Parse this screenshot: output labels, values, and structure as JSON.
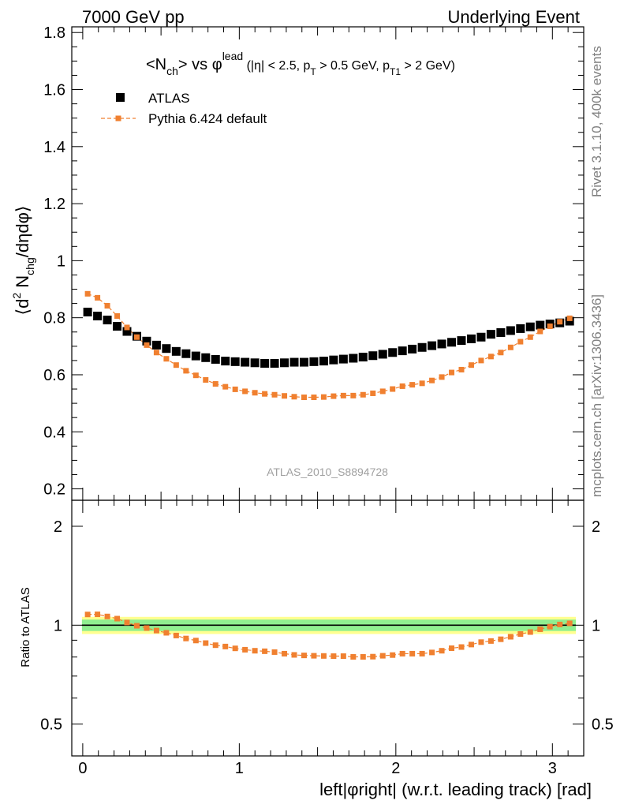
{
  "header": {
    "left": "7000 GeV pp",
    "right": "Underlying Event"
  },
  "side_labels": {
    "rivet": "Rivet 3.1.10,  400k events",
    "mcplots": "mcplots.cern.ch [arXiv:1306.3436]"
  },
  "title": {
    "main": "<N",
    "main_sub": "ch",
    "main_mid": "> vs ",
    "phi": "φ",
    "phi_sup": "lead",
    "cuts_a": " (|η| < 2.5, p",
    "cuts_a_sub": "T",
    "cuts_b": " > 0.5 GeV, p",
    "cuts_b_sub": "T1",
    "cuts_c": " > 2 GeV)"
  },
  "ylabel": {
    "a": "⟨d",
    "sup": "2",
    "b": " N",
    "sub": "chg",
    "c": "/dηdφ⟩"
  },
  "ratio_ylabel": "Ratio to ATLAS",
  "xlabel": "left|φright| (w.r.t. leading track) [rad]",
  "watermark": "ATLAS_2010_S8894728",
  "colors": {
    "atlas": "#000000",
    "pythia": "#f08030",
    "band_inner": "#90ee90",
    "band_outer": "#ffff90"
  },
  "chart_data": [
    {
      "type": "scatter",
      "title": "",
      "xlabel": "",
      "ylabel": "⟨d2 Nchg/dηdφ⟩",
      "xlim": [
        -0.07,
        3.2
      ],
      "ylim": [
        0.16,
        1.82
      ],
      "yticks": [
        0.2,
        0.4,
        0.6,
        0.8,
        1,
        1.2,
        1.4,
        1.6,
        1.8
      ],
      "yticklabels": [
        "0.2",
        "0.4",
        "0.6",
        "0.8",
        "1",
        "1.2",
        "1.4",
        "1.6",
        "1.8"
      ],
      "legend": "top-left",
      "x": [
        0.0314,
        0.0942,
        0.157,
        0.2199,
        0.2827,
        0.3456,
        0.4084,
        0.4712,
        0.5341,
        0.5969,
        0.6597,
        0.7226,
        0.7854,
        0.8482,
        0.9111,
        0.9739,
        1.0367,
        1.0996,
        1.1624,
        1.2252,
        1.2881,
        1.3509,
        1.4137,
        1.4765,
        1.5394,
        1.6022,
        1.665,
        1.7279,
        1.7907,
        1.8535,
        1.9164,
        1.9792,
        2.042,
        2.1049,
        2.1677,
        2.2305,
        2.2934,
        2.3562,
        2.419,
        2.4819,
        2.5447,
        2.6075,
        2.6704,
        2.7332,
        2.796,
        2.8588,
        2.9217,
        2.9845,
        3.0473,
        3.1102
      ],
      "series": [
        {
          "name": "ATLAS",
          "marker": "square",
          "values": [
            0.82,
            0.806,
            0.792,
            0.77,
            0.752,
            0.735,
            0.718,
            0.704,
            0.692,
            0.682,
            0.674,
            0.666,
            0.66,
            0.654,
            0.648,
            0.646,
            0.644,
            0.642,
            0.64,
            0.64,
            0.642,
            0.644,
            0.644,
            0.646,
            0.648,
            0.652,
            0.655,
            0.658,
            0.662,
            0.667,
            0.672,
            0.678,
            0.684,
            0.69,
            0.696,
            0.702,
            0.708,
            0.714,
            0.72,
            0.726,
            0.732,
            0.742,
            0.748,
            0.755,
            0.762,
            0.768,
            0.774,
            0.778,
            0.782,
            0.788
          ]
        },
        {
          "name": "Pythia 6.424 default",
          "marker": "square-line",
          "values": [
            0.884,
            0.87,
            0.842,
            0.806,
            0.766,
            0.732,
            0.704,
            0.678,
            0.656,
            0.634,
            0.614,
            0.598,
            0.582,
            0.568,
            0.558,
            0.549,
            0.542,
            0.537,
            0.533,
            0.53,
            0.526,
            0.523,
            0.521,
            0.521,
            0.522,
            0.525,
            0.527,
            0.527,
            0.53,
            0.535,
            0.542,
            0.55,
            0.56,
            0.565,
            0.57,
            0.58,
            0.592,
            0.608,
            0.618,
            0.634,
            0.65,
            0.664,
            0.678,
            0.696,
            0.716,
            0.732,
            0.752,
            0.77,
            0.786,
            0.798
          ]
        }
      ]
    },
    {
      "type": "scatter",
      "title": "",
      "xlabel": "left|φright| (w.r.t. leading track) [rad]",
      "ylabel": "Ratio to ATLAS",
      "xlim": [
        -0.07,
        3.2
      ],
      "ylim": [
        0.4,
        2.4
      ],
      "yscale": "log",
      "yticks": [
        0.5,
        1,
        2
      ],
      "yticklabels": [
        "0.5",
        "1",
        "2"
      ],
      "xticks": [
        0,
        1,
        2,
        3
      ],
      "xticklabels": [
        "0",
        "1",
        "2",
        "3"
      ],
      "reference_line": 1,
      "bands": [
        {
          "name": "",
          "low": 0.94,
          "high": 1.06
        },
        {
          "name": "",
          "low": 0.96,
          "high": 1.04
        }
      ],
      "series": [
        {
          "name": "Pythia 6.424 default",
          "marker": "square-line",
          "values": [
            1.078,
            1.079,
            1.063,
            1.047,
            1.019,
            0.996,
            0.98,
            0.963,
            0.948,
            0.93,
            0.911,
            0.898,
            0.882,
            0.869,
            0.861,
            0.85,
            0.842,
            0.836,
            0.833,
            0.828,
            0.819,
            0.812,
            0.809,
            0.807,
            0.806,
            0.805,
            0.805,
            0.801,
            0.801,
            0.802,
            0.807,
            0.811,
            0.819,
            0.819,
            0.819,
            0.826,
            0.836,
            0.851,
            0.858,
            0.873,
            0.888,
            0.895,
            0.906,
            0.922,
            0.94,
            0.953,
            0.972,
            0.99,
            1.005,
            1.013
          ]
        }
      ]
    }
  ]
}
